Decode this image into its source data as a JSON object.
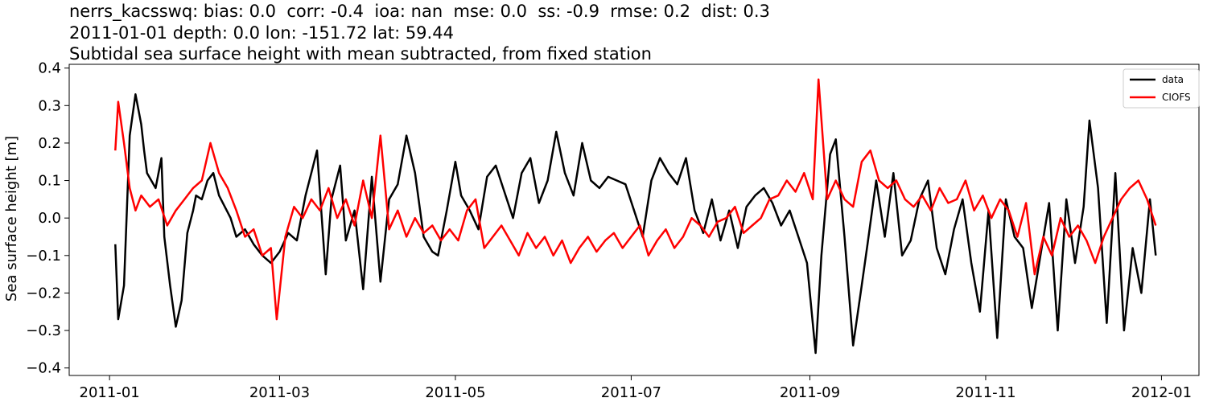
{
  "titles": {
    "line1": "nerrs_kacsswq: bias: 0.0  corr: -0.4  ioa: nan  mse: 0.0  ss: -0.9  rmse: 0.2  dist: 0.3",
    "line2": "2011-01-01 depth: 0.0 lon: -151.72 lat: 59.44",
    "line3": "Subtidal sea surface height with mean subtracted, from fixed station"
  },
  "chart_data": {
    "type": "line",
    "ylabel": "Sea surface height [m]",
    "xlim": [
      "2010-12-18",
      "2012-01-14"
    ],
    "ylim": [
      -0.42,
      0.41
    ],
    "x_ticks": [
      "2011-01",
      "2011-03",
      "2011-05",
      "2011-07",
      "2011-09",
      "2011-11",
      "2012-01"
    ],
    "y_ticks": [
      "0.4",
      "0.3",
      "0.2",
      "0.1",
      "0.0",
      "−0.1",
      "−0.2",
      "−0.3",
      "−0.4"
    ],
    "grid": false,
    "legend_position": "top-right",
    "series": [
      {
        "name": "data",
        "color": "#000000",
        "x": [
          "2011-01-03",
          "2011-01-04",
          "2011-01-06",
          "2011-01-08",
          "2011-01-10",
          "2011-01-12",
          "2011-01-13",
          "2011-01-14",
          "2011-01-17",
          "2011-01-19",
          "2011-01-20",
          "2011-01-22",
          "2011-01-24",
          "2011-01-26",
          "2011-01-28",
          "2011-01-30",
          "2011-01-31",
          "2011-02-02",
          "2011-02-04",
          "2011-02-06",
          "2011-02-08",
          "2011-02-10",
          "2011-02-12",
          "2011-02-14",
          "2011-02-17",
          "2011-02-20",
          "2011-02-23",
          "2011-02-26",
          "2011-03-01",
          "2011-03-04",
          "2011-03-07",
          "2011-03-10",
          "2011-03-12",
          "2011-03-14",
          "2011-03-17",
          "2011-03-19",
          "2011-03-22",
          "2011-03-24",
          "2011-03-27",
          "2011-03-30",
          "2011-04-02",
          "2011-04-05",
          "2011-04-08",
          "2011-04-11",
          "2011-04-14",
          "2011-04-17",
          "2011-04-20",
          "2011-04-23",
          "2011-04-25",
          "2011-04-28",
          "2011-05-01",
          "2011-05-03",
          "2011-05-06",
          "2011-05-09",
          "2011-05-12",
          "2011-05-15",
          "2011-05-18",
          "2011-05-21",
          "2011-05-24",
          "2011-05-27",
          "2011-05-30",
          "2011-06-02",
          "2011-06-05",
          "2011-06-08",
          "2011-06-11",
          "2011-06-14",
          "2011-06-17",
          "2011-06-20",
          "2011-06-23",
          "2011-06-26",
          "2011-06-29",
          "2011-07-02",
          "2011-07-05",
          "2011-07-08",
          "2011-07-11",
          "2011-07-14",
          "2011-07-17",
          "2011-07-20",
          "2011-07-23",
          "2011-07-26",
          "2011-07-29",
          "2011-08-01",
          "2011-08-04",
          "2011-08-07",
          "2011-08-10",
          "2011-08-13",
          "2011-08-16",
          "2011-08-19",
          "2011-08-22",
          "2011-08-25",
          "2011-08-28",
          "2011-08-31",
          "2011-09-03",
          "2011-09-05",
          "2011-09-08",
          "2011-09-10",
          "2011-09-13",
          "2011-09-16",
          "2011-09-19",
          "2011-09-21",
          "2011-09-24",
          "2011-09-27",
          "2011-09-30",
          "2011-10-03",
          "2011-10-06",
          "2011-10-09",
          "2011-10-12",
          "2011-10-15",
          "2011-10-18",
          "2011-10-21",
          "2011-10-24",
          "2011-10-27",
          "2011-10-30",
          "2011-11-02",
          "2011-11-05",
          "2011-11-08",
          "2011-11-11",
          "2011-11-14",
          "2011-11-17",
          "2011-11-20",
          "2011-11-23",
          "2011-11-26",
          "2011-11-29",
          "2011-12-02",
          "2011-12-05",
          "2011-12-07",
          "2011-12-10",
          "2011-12-13",
          "2011-12-16",
          "2011-12-19",
          "2011-12-22",
          "2011-12-25",
          "2011-12-28",
          "2011-12-30"
        ],
        "y": [
          -0.07,
          -0.27,
          -0.18,
          0.22,
          0.33,
          0.25,
          0.18,
          0.12,
          0.08,
          0.16,
          -0.05,
          -0.18,
          -0.29,
          -0.22,
          -0.04,
          0.02,
          0.06,
          0.05,
          0.1,
          0.12,
          0.06,
          0.03,
          0.0,
          -0.05,
          -0.03,
          -0.07,
          -0.1,
          -0.12,
          -0.09,
          -0.04,
          -0.06,
          0.06,
          0.12,
          0.18,
          -0.15,
          0.05,
          0.14,
          -0.06,
          0.02,
          -0.19,
          0.11,
          -0.17,
          0.05,
          0.09,
          0.22,
          0.12,
          -0.05,
          -0.09,
          -0.1,
          0.02,
          0.15,
          0.06,
          0.02,
          -0.03,
          0.11,
          0.14,
          0.07,
          0.0,
          0.12,
          0.16,
          0.04,
          0.1,
          0.23,
          0.12,
          0.06,
          0.2,
          0.1,
          0.08,
          0.11,
          0.1,
          0.09,
          0.02,
          -0.05,
          0.1,
          0.16,
          0.12,
          0.09,
          0.16,
          0.02,
          -0.04,
          0.05,
          -0.06,
          0.02,
          -0.08,
          0.03,
          0.06,
          0.08,
          0.04,
          -0.02,
          0.02,
          -0.05,
          -0.12,
          -0.36,
          -0.1,
          0.17,
          0.21,
          -0.05,
          -0.34,
          -0.18,
          -0.07,
          0.1,
          -0.05,
          0.12,
          -0.1,
          -0.06,
          0.05,
          0.1,
          -0.08,
          -0.15,
          -0.03,
          0.05,
          -0.12,
          -0.25,
          0.02,
          -0.32,
          0.05,
          -0.05,
          -0.08,
          -0.24,
          -0.1,
          0.04,
          -0.3,
          0.05,
          -0.12,
          0.03,
          0.26,
          0.08,
          -0.28,
          0.12,
          -0.3,
          -0.08,
          -0.2,
          0.05,
          -0.1
        ]
      },
      {
        "name": "CIOFS",
        "color": "#ff0000",
        "x": [
          "2011-01-03",
          "2011-01-04",
          "2011-01-06",
          "2011-01-08",
          "2011-01-10",
          "2011-01-12",
          "2011-01-15",
          "2011-01-18",
          "2011-01-21",
          "2011-01-24",
          "2011-01-27",
          "2011-01-30",
          "2011-02-02",
          "2011-02-05",
          "2011-02-08",
          "2011-02-11",
          "2011-02-14",
          "2011-02-17",
          "2011-02-20",
          "2011-02-23",
          "2011-02-26",
          "2011-02-28",
          "2011-03-03",
          "2011-03-06",
          "2011-03-09",
          "2011-03-12",
          "2011-03-15",
          "2011-03-18",
          "2011-03-21",
          "2011-03-24",
          "2011-03-27",
          "2011-03-30",
          "2011-04-02",
          "2011-04-05",
          "2011-04-08",
          "2011-04-11",
          "2011-04-14",
          "2011-04-17",
          "2011-04-20",
          "2011-04-23",
          "2011-04-26",
          "2011-04-29",
          "2011-05-02",
          "2011-05-05",
          "2011-05-08",
          "2011-05-11",
          "2011-05-14",
          "2011-05-17",
          "2011-05-20",
          "2011-05-23",
          "2011-05-26",
          "2011-05-29",
          "2011-06-01",
          "2011-06-04",
          "2011-06-07",
          "2011-06-10",
          "2011-06-13",
          "2011-06-16",
          "2011-06-19",
          "2011-06-22",
          "2011-06-25",
          "2011-06-28",
          "2011-07-01",
          "2011-07-04",
          "2011-07-07",
          "2011-07-10",
          "2011-07-13",
          "2011-07-16",
          "2011-07-19",
          "2011-07-22",
          "2011-07-25",
          "2011-07-28",
          "2011-07-31",
          "2011-08-03",
          "2011-08-06",
          "2011-08-09",
          "2011-08-12",
          "2011-08-15",
          "2011-08-18",
          "2011-08-21",
          "2011-08-24",
          "2011-08-27",
          "2011-08-30",
          "2011-09-02",
          "2011-09-04",
          "2011-09-07",
          "2011-09-10",
          "2011-09-13",
          "2011-09-16",
          "2011-09-19",
          "2011-09-22",
          "2011-09-25",
          "2011-09-28",
          "2011-10-01",
          "2011-10-04",
          "2011-10-07",
          "2011-10-10",
          "2011-10-13",
          "2011-10-16",
          "2011-10-19",
          "2011-10-22",
          "2011-10-25",
          "2011-10-28",
          "2011-10-31",
          "2011-11-03",
          "2011-11-06",
          "2011-11-09",
          "2011-11-12",
          "2011-11-15",
          "2011-11-18",
          "2011-11-21",
          "2011-11-24",
          "2011-11-27",
          "2011-11-30",
          "2011-12-03",
          "2011-12-06",
          "2011-12-09",
          "2011-12-12",
          "2011-12-15",
          "2011-12-18",
          "2011-12-21",
          "2011-12-24",
          "2011-12-27",
          "2011-12-30"
        ],
        "y": [
          0.18,
          0.31,
          0.2,
          0.08,
          0.02,
          0.06,
          0.03,
          0.05,
          -0.02,
          0.02,
          0.05,
          0.08,
          0.1,
          0.2,
          0.12,
          0.08,
          0.02,
          -0.05,
          -0.03,
          -0.1,
          -0.08,
          -0.27,
          -0.05,
          0.03,
          0.0,
          0.05,
          0.02,
          0.08,
          0.0,
          0.05,
          -0.02,
          0.1,
          0.0,
          0.22,
          -0.03,
          0.02,
          -0.05,
          0.0,
          -0.04,
          -0.02,
          -0.06,
          -0.03,
          -0.06,
          0.02,
          0.05,
          -0.08,
          -0.05,
          -0.02,
          -0.06,
          -0.1,
          -0.04,
          -0.08,
          -0.05,
          -0.1,
          -0.06,
          -0.12,
          -0.08,
          -0.05,
          -0.09,
          -0.06,
          -0.04,
          -0.08,
          -0.05,
          -0.02,
          -0.1,
          -0.06,
          -0.03,
          -0.08,
          -0.05,
          0.0,
          -0.02,
          -0.05,
          -0.01,
          0.0,
          0.03,
          -0.04,
          -0.02,
          0.0,
          0.05,
          0.06,
          0.1,
          0.07,
          0.12,
          0.05,
          0.37,
          0.05,
          0.1,
          0.05,
          0.03,
          0.15,
          0.18,
          0.1,
          0.08,
          0.1,
          0.05,
          0.03,
          0.06,
          0.02,
          0.08,
          0.04,
          0.05,
          0.1,
          0.02,
          0.06,
          0.0,
          0.05,
          0.02,
          -0.05,
          0.04,
          -0.15,
          -0.05,
          -0.1,
          0.0,
          -0.05,
          -0.02,
          -0.06,
          -0.12,
          -0.05,
          0.0,
          0.05,
          0.08,
          0.1,
          0.05,
          -0.02
        ]
      }
    ]
  }
}
